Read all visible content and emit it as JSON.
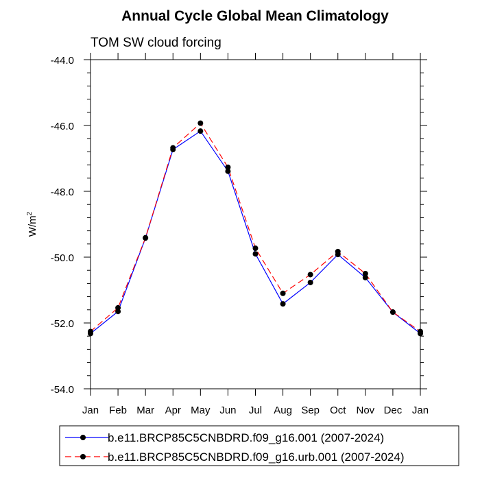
{
  "chart_data": {
    "type": "line",
    "title": "Annual Cycle Global Mean Climatology",
    "subtitle": "TOM SW cloud forcing",
    "ylabel": "W/m",
    "ylabel_superscript": "2",
    "xlabel": "",
    "categories": [
      "Jan",
      "Feb",
      "Mar",
      "Apr",
      "May",
      "Jun",
      "Jul",
      "Aug",
      "Sep",
      "Oct",
      "Nov",
      "Dec",
      "Jan"
    ],
    "ylim": [
      -54.0,
      -44.0
    ],
    "yticks": [
      -54.0,
      -52.0,
      -50.0,
      -48.0,
      -46.0,
      -44.0
    ],
    "ytick_labels": [
      "-54.0",
      "-52.0",
      "-50.0",
      "-48.0",
      "-46.0",
      "-44.0"
    ],
    "series": [
      {
        "name": "b.e11.BRCP85C5CNBDRD.f09_g16.001 (2007-2024)",
        "color": "#0000ff",
        "dash": "solid",
        "values": [
          -52.32,
          -51.65,
          -49.42,
          -46.73,
          -46.17,
          -47.39,
          -49.9,
          -51.42,
          -50.77,
          -49.92,
          -50.62,
          -51.67,
          -52.32
        ]
      },
      {
        "name": "b.e11.BRCP85C5CNBDRD.f09_g16.urb.001 (2007-2024)",
        "color": "#ff0000",
        "dash": "dashed",
        "values": [
          -52.26,
          -51.54,
          -49.41,
          -46.68,
          -45.93,
          -47.27,
          -49.73,
          -51.1,
          -50.53,
          -49.83,
          -50.5,
          -51.67,
          -52.26
        ]
      }
    ]
  }
}
